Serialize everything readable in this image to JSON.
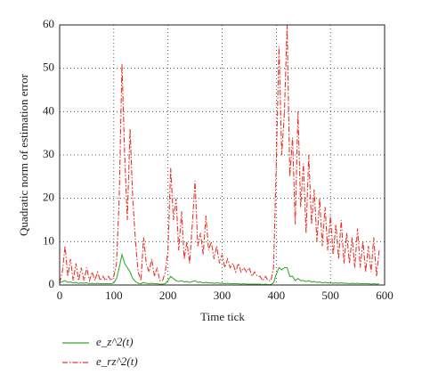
{
  "chart_data": {
    "type": "line",
    "xlabel": "Time tick",
    "ylabel": "Quadratic norm of estimation error",
    "x": [
      0,
      5,
      10,
      15,
      20,
      25,
      30,
      35,
      40,
      45,
      50,
      55,
      60,
      65,
      70,
      75,
      80,
      85,
      90,
      95,
      100,
      105,
      110,
      115,
      120,
      125,
      130,
      135,
      140,
      145,
      150,
      155,
      160,
      165,
      170,
      175,
      180,
      185,
      190,
      195,
      200,
      205,
      210,
      215,
      220,
      225,
      230,
      235,
      240,
      245,
      250,
      255,
      260,
      265,
      270,
      275,
      280,
      285,
      290,
      295,
      300,
      305,
      310,
      315,
      320,
      325,
      330,
      335,
      340,
      345,
      350,
      355,
      360,
      365,
      370,
      375,
      380,
      385,
      390,
      395,
      400,
      405,
      410,
      415,
      420,
      425,
      430,
      435,
      440,
      445,
      450,
      455,
      460,
      465,
      470,
      475,
      480,
      485,
      490,
      495,
      500,
      505,
      510,
      515,
      520,
      525,
      530,
      535,
      540,
      545,
      550,
      555,
      560,
      565,
      570,
      575,
      580,
      585,
      590
    ],
    "series": [
      {
        "name": "e_z^2(t)",
        "color": "#3aa832",
        "line_style": "solid",
        "values": [
          0.5,
          0.8,
          1,
          0.6,
          0.7,
          0.5,
          0.6,
          0.4,
          0.5,
          0.4,
          0.5,
          0.3,
          0.4,
          0.3,
          0.4,
          0.3,
          0.3,
          0.3,
          0.3,
          0.3,
          0.5,
          1.5,
          4,
          7,
          5,
          4,
          3,
          1.5,
          0.8,
          0.4,
          0.3,
          0.6,
          0.4,
          0.3,
          0.4,
          0.3,
          0.3,
          0.2,
          0.2,
          0.3,
          1,
          2,
          1.5,
          1,
          0.8,
          1,
          0.7,
          0.8,
          0.6,
          0.8,
          1,
          0.6,
          0.7,
          0.5,
          0.6,
          0.5,
          0.5,
          0.4,
          0.5,
          0.4,
          0.4,
          0.3,
          0.4,
          0.3,
          0.3,
          0.3,
          0.3,
          0.2,
          0.3,
          0.2,
          0.2,
          0.2,
          0.2,
          0.2,
          0.2,
          0.1,
          0.2,
          0.1,
          0.1,
          0.5,
          2.5,
          4,
          3.5,
          4,
          4,
          2,
          2,
          1,
          1.5,
          1,
          1,
          0.8,
          1,
          0.7,
          0.8,
          0.6,
          0.7,
          0.5,
          0.6,
          0.5,
          0.5,
          0.4,
          0.5,
          0.4,
          0.5,
          0.4,
          0.4,
          0.3,
          0.4,
          0.3,
          0.4,
          0.3,
          0.3,
          0.3,
          0.3,
          0.2,
          0.3,
          0.2,
          0.3
        ]
      },
      {
        "name": "e_rz^2(t)",
        "color": "#e8352b",
        "line_style": "dashdot",
        "values": [
          0.5,
          3,
          9,
          2,
          6,
          1,
          5,
          1,
          4,
          1,
          4,
          1,
          3,
          1,
          3,
          1,
          2,
          1,
          2,
          1,
          2,
          5,
          20,
          51,
          30,
          15,
          36,
          20,
          10,
          3,
          1,
          11,
          5,
          3,
          6,
          2,
          4,
          1,
          1,
          3,
          8,
          27,
          15,
          20,
          8,
          17,
          6,
          10,
          5,
          14,
          24,
          9,
          12,
          7,
          16,
          8,
          10,
          6,
          9,
          5,
          7,
          4,
          6,
          4,
          5,
          3,
          5,
          3,
          4,
          3,
          4,
          2,
          3,
          2,
          2,
          1,
          2,
          1,
          1,
          4,
          28,
          55,
          30,
          40,
          60,
          25,
          34,
          14,
          40,
          18,
          28,
          12,
          30,
          14,
          22,
          10,
          20,
          9,
          18,
          8,
          16,
          7,
          14,
          6,
          15,
          5,
          12,
          5,
          11,
          4,
          13,
          4,
          10,
          3,
          9,
          3,
          11,
          2,
          8
        ]
      }
    ],
    "xlim": [
      0,
      600
    ],
    "xticks": [
      0,
      100,
      200,
      300,
      400,
      500,
      600
    ],
    "ylim": [
      0,
      60
    ],
    "yticks": [
      0,
      10,
      20,
      30,
      40,
      50,
      60
    ],
    "grid": true,
    "legend": "below-left"
  }
}
